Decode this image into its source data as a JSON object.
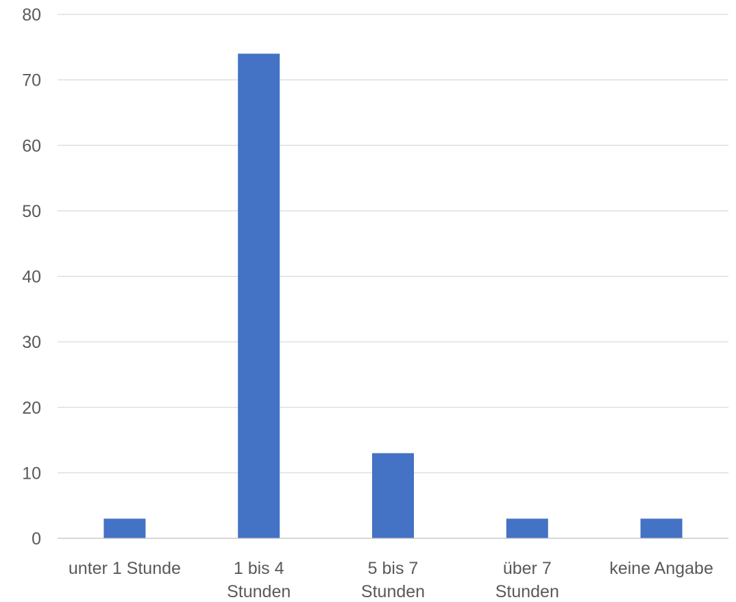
{
  "chart_data": {
    "type": "bar",
    "title": "",
    "xlabel": "",
    "ylabel": "",
    "categories": [
      [
        "unter 1 Stunde"
      ],
      [
        "1 bis 4",
        "Stunden"
      ],
      [
        "5 bis 7",
        "Stunden"
      ],
      [
        "über 7",
        "Stunden"
      ],
      [
        "keine Angabe"
      ]
    ],
    "values": [
      3,
      74,
      13,
      3,
      3
    ],
    "ylim": [
      0,
      80
    ],
    "yticks": [
      0,
      10,
      20,
      30,
      40,
      50,
      60,
      70,
      80
    ],
    "grid": true,
    "legend": "none",
    "colors": {
      "bar": "#4472c4",
      "grid": "#d9d9d9",
      "axis": "#bfbfbf",
      "text": "#595959"
    }
  }
}
